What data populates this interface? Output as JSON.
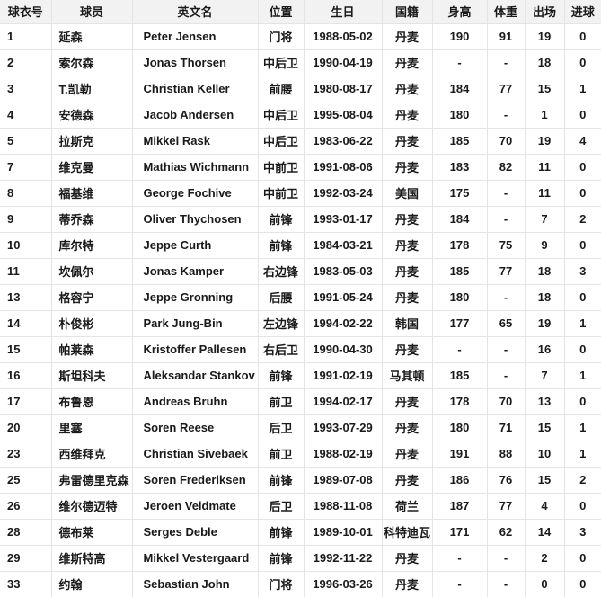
{
  "colors": {
    "header_bg": "#f2f2f2",
    "border": "#e4e4e4",
    "text": "#1a1a1a",
    "page_bg": "#ffffff"
  },
  "table": {
    "columns": [
      {
        "key": "number",
        "label": "球衣号",
        "align": "left",
        "indent": 8
      },
      {
        "key": "player",
        "label": "球员",
        "align": "left",
        "indent": 8
      },
      {
        "key": "name_en",
        "label": "英文名",
        "align": "left",
        "indent": 12
      },
      {
        "key": "position",
        "label": "位置",
        "align": "center"
      },
      {
        "key": "birthday",
        "label": "生日",
        "align": "center"
      },
      {
        "key": "nationality",
        "label": "国籍",
        "align": "center"
      },
      {
        "key": "height",
        "label": "身高",
        "align": "center"
      },
      {
        "key": "weight",
        "label": "体重",
        "align": "center"
      },
      {
        "key": "appearances",
        "label": "出场",
        "align": "center"
      },
      {
        "key": "goals",
        "label": "进球",
        "align": "center"
      }
    ],
    "rows": [
      [
        "1",
        "延森",
        "Peter Jensen",
        "门将",
        "1988-05-02",
        "丹麦",
        "190",
        "91",
        "19",
        "0"
      ],
      [
        "2",
        "索尔森",
        "Jonas Thorsen",
        "中后卫",
        "1990-04-19",
        "丹麦",
        "-",
        "-",
        "18",
        "0"
      ],
      [
        "3",
        "T.凯勒",
        "Christian Keller",
        "前腰",
        "1980-08-17",
        "丹麦",
        "184",
        "77",
        "15",
        "1"
      ],
      [
        "4",
        "安德森",
        "Jacob Andersen",
        "中后卫",
        "1995-08-04",
        "丹麦",
        "180",
        "-",
        "1",
        "0"
      ],
      [
        "5",
        "拉斯克",
        "Mikkel Rask",
        "中后卫",
        "1983-06-22",
        "丹麦",
        "185",
        "70",
        "19",
        "4"
      ],
      [
        "7",
        "维克曼",
        "Mathias Wichmann",
        "中前卫",
        "1991-08-06",
        "丹麦",
        "183",
        "82",
        "11",
        "0"
      ],
      [
        "8",
        "福基维",
        "George Fochive",
        "中前卫",
        "1992-03-24",
        "美国",
        "175",
        "-",
        "11",
        "0"
      ],
      [
        "9",
        "蒂乔森",
        "Oliver Thychosen",
        "前锋",
        "1993-01-17",
        "丹麦",
        "184",
        "-",
        "7",
        "2"
      ],
      [
        "10",
        "库尔特",
        "Jeppe Curth",
        "前锋",
        "1984-03-21",
        "丹麦",
        "178",
        "75",
        "9",
        "0"
      ],
      [
        "11",
        "坎佩尔",
        "Jonas Kamper",
        "右边锋",
        "1983-05-03",
        "丹麦",
        "185",
        "77",
        "18",
        "3"
      ],
      [
        "13",
        "格容宁",
        "Jeppe Gronning",
        "后腰",
        "1991-05-24",
        "丹麦",
        "180",
        "-",
        "18",
        "0"
      ],
      [
        "14",
        "朴俊彬",
        "Park Jung-Bin",
        "左边锋",
        "1994-02-22",
        "韩国",
        "177",
        "65",
        "19",
        "1"
      ],
      [
        "15",
        "帕莱森",
        "Kristoffer Pallesen",
        "右后卫",
        "1990-04-30",
        "丹麦",
        "-",
        "-",
        "16",
        "0"
      ],
      [
        "16",
        "斯坦科夫",
        "Aleksandar Stankov",
        "前锋",
        "1991-02-19",
        "马其顿",
        "185",
        "-",
        "7",
        "1"
      ],
      [
        "17",
        "布鲁恩",
        "Andreas Bruhn",
        "前卫",
        "1994-02-17",
        "丹麦",
        "178",
        "70",
        "13",
        "0"
      ],
      [
        "20",
        "里塞",
        "Soren Reese",
        "后卫",
        "1993-07-29",
        "丹麦",
        "180",
        "71",
        "15",
        "1"
      ],
      [
        "23",
        "西维拜克",
        "Christian Sivebaek",
        "前卫",
        "1988-02-19",
        "丹麦",
        "191",
        "88",
        "10",
        "1"
      ],
      [
        "25",
        "弗雷德里克森",
        "Soren Frederiksen",
        "前锋",
        "1989-07-08",
        "丹麦",
        "186",
        "76",
        "15",
        "2"
      ],
      [
        "26",
        "维尔德迈特",
        "Jeroen Veldmate",
        "后卫",
        "1988-11-08",
        "荷兰",
        "187",
        "77",
        "4",
        "0"
      ],
      [
        "28",
        "德布莱",
        "Serges Deble",
        "前锋",
        "1989-10-01",
        "科特迪瓦",
        "171",
        "62",
        "14",
        "3"
      ],
      [
        "29",
        "维斯特高",
        "Mikkel Vestergaard",
        "前锋",
        "1992-11-22",
        "丹麦",
        "-",
        "-",
        "2",
        "0"
      ],
      [
        "33",
        "约翰",
        "Sebastian John",
        "门将",
        "1996-03-26",
        "丹麦",
        "-",
        "-",
        "0",
        "0"
      ]
    ]
  }
}
